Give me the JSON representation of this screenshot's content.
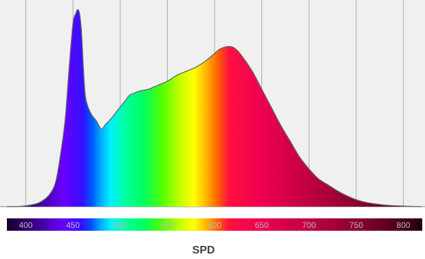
{
  "chart_data": {
    "type": "area",
    "title": "SPD",
    "xlabel": "",
    "ylabel": "",
    "xlim": [
      380,
      820
    ],
    "ylim": [
      0,
      1.0
    ],
    "grid": true,
    "x_ticks": [
      400,
      450,
      500,
      550,
      600,
      650,
      700,
      750,
      800
    ],
    "tick_labels": [
      "400",
      "450",
      "500",
      "550",
      "600",
      "650",
      "700",
      "750",
      "800"
    ],
    "series": [
      {
        "x": [
          380,
          395,
          405,
          415,
          425,
          432,
          438,
          442,
          446,
          450,
          453,
          455,
          457,
          459,
          461,
          463,
          466,
          470,
          475,
          480,
          484,
          490,
          495,
          500,
          505,
          510,
          515,
          520,
          530,
          540,
          550,
          560,
          570,
          580,
          590,
          600,
          605,
          610,
          615,
          620,
          625,
          630,
          640,
          650,
          660,
          670,
          680,
          690,
          700,
          710,
          720,
          730,
          740,
          750,
          760,
          770,
          780,
          790,
          800,
          810,
          820
        ],
        "y": [
          0.0,
          0.002,
          0.008,
          0.022,
          0.06,
          0.13,
          0.3,
          0.45,
          0.7,
          0.92,
          0.97,
          0.99,
          0.97,
          0.88,
          0.7,
          0.56,
          0.5,
          0.46,
          0.43,
          0.39,
          0.41,
          0.44,
          0.47,
          0.5,
          0.53,
          0.56,
          0.57,
          0.58,
          0.59,
          0.61,
          0.63,
          0.66,
          0.68,
          0.7,
          0.73,
          0.77,
          0.79,
          0.8,
          0.805,
          0.8,
          0.78,
          0.75,
          0.68,
          0.59,
          0.5,
          0.41,
          0.33,
          0.25,
          0.19,
          0.14,
          0.11,
          0.08,
          0.055,
          0.035,
          0.022,
          0.014,
          0.008,
          0.005,
          0.003,
          0.001,
          0.0
        ]
      }
    ],
    "colors": {
      "background": "#f0f0f0",
      "grid": "#a9a9a9",
      "outline": "#666666",
      "baseline": "#909090"
    },
    "spectrum_stops": [
      {
        "nm": 380,
        "color": "#12002a"
      },
      {
        "nm": 410,
        "color": "#3a0088"
      },
      {
        "nm": 440,
        "color": "#6a00ff"
      },
      {
        "nm": 460,
        "color": "#3310ff"
      },
      {
        "nm": 470,
        "color": "#0055ff"
      },
      {
        "nm": 480,
        "color": "#00b0ff"
      },
      {
        "nm": 490,
        "color": "#00f0ff"
      },
      {
        "nm": 505,
        "color": "#00ffa0"
      },
      {
        "nm": 525,
        "color": "#00ff60"
      },
      {
        "nm": 545,
        "color": "#55ff00"
      },
      {
        "nm": 565,
        "color": "#ccff00"
      },
      {
        "nm": 578,
        "color": "#ffff00"
      },
      {
        "nm": 590,
        "color": "#ffbb00"
      },
      {
        "nm": 603,
        "color": "#ff6600"
      },
      {
        "nm": 615,
        "color": "#ff1040"
      },
      {
        "nm": 650,
        "color": "#ee0050"
      },
      {
        "nm": 700,
        "color": "#c00040"
      },
      {
        "nm": 760,
        "color": "#80002a"
      },
      {
        "nm": 820,
        "color": "#25000a"
      }
    ]
  }
}
